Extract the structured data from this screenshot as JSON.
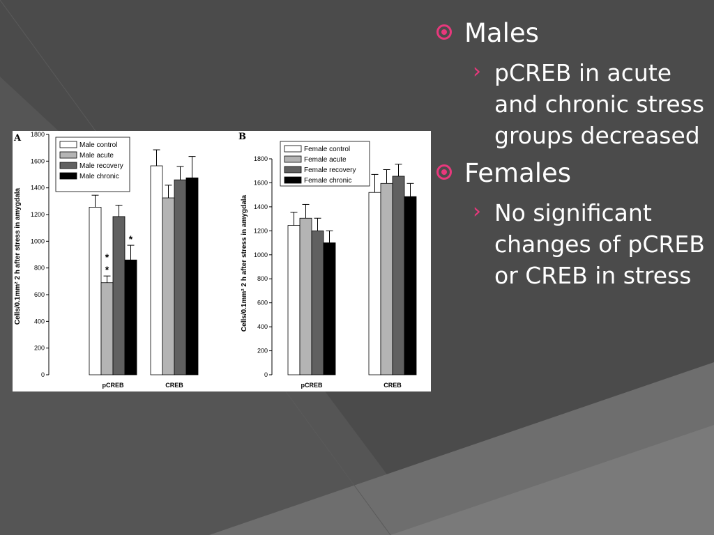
{
  "slide": {
    "bullets": [
      {
        "title": "Males",
        "sub": "pCREB in acute and chronic stress groups decreased"
      },
      {
        "title": "Females",
        "sub": "No significant changes of pCREB or CREB in stress"
      }
    ]
  },
  "colors": {
    "background": "#4a4a4a",
    "bullet_accent": "#e8387c",
    "text": "#ffffff",
    "series": [
      "#ffffff",
      "#b4b4b4",
      "#606060",
      "#000000"
    ]
  },
  "chart_data": [
    {
      "type": "bar",
      "panel_label": "A",
      "ylabel": "Cells/0.1mm² 2 h after stress in amygdala",
      "ylim": [
        0,
        1800
      ],
      "yticks": [
        0,
        200,
        400,
        600,
        800,
        1000,
        1200,
        1400,
        1600,
        1800
      ],
      "categories": [
        "pCREB",
        "CREB"
      ],
      "legend_position": "top-left",
      "series": [
        {
          "name": "Male control",
          "values": [
            1255,
            1565
          ],
          "errors": [
            90,
            120
          ]
        },
        {
          "name": "Male acute",
          "values": [
            690,
            1325
          ],
          "errors": [
            50,
            95
          ]
        },
        {
          "name": "Male recovery",
          "values": [
            1185,
            1460
          ],
          "errors": [
            85,
            100
          ]
        },
        {
          "name": "Male chronic",
          "values": [
            860,
            1475
          ],
          "errors": [
            110,
            160
          ]
        }
      ],
      "annotations": [
        {
          "category": "pCREB",
          "series": "Male acute",
          "text": "*\n*"
        },
        {
          "category": "pCREB",
          "series": "Male chronic",
          "text": "*"
        }
      ]
    },
    {
      "type": "bar",
      "panel_label": "B",
      "ylabel": "Cells/0.1mm² 2 h after stress in amygdala",
      "ylim": [
        0,
        1800
      ],
      "yticks": [
        0,
        200,
        400,
        600,
        800,
        1000,
        1200,
        1400,
        1600,
        1800
      ],
      "categories": [
        "pCREB",
        "CREB"
      ],
      "legend_position": "top-left",
      "series": [
        {
          "name": "Female control",
          "values": [
            1245,
            1520
          ],
          "errors": [
            110,
            150
          ]
        },
        {
          "name": "Female acute",
          "values": [
            1305,
            1595
          ],
          "errors": [
            115,
            115
          ]
        },
        {
          "name": "Female recovery",
          "values": [
            1200,
            1655
          ],
          "errors": [
            105,
            100
          ]
        },
        {
          "name": "Female chronic",
          "values": [
            1100,
            1485
          ],
          "errors": [
            100,
            110
          ]
        }
      ],
      "annotations": []
    }
  ]
}
